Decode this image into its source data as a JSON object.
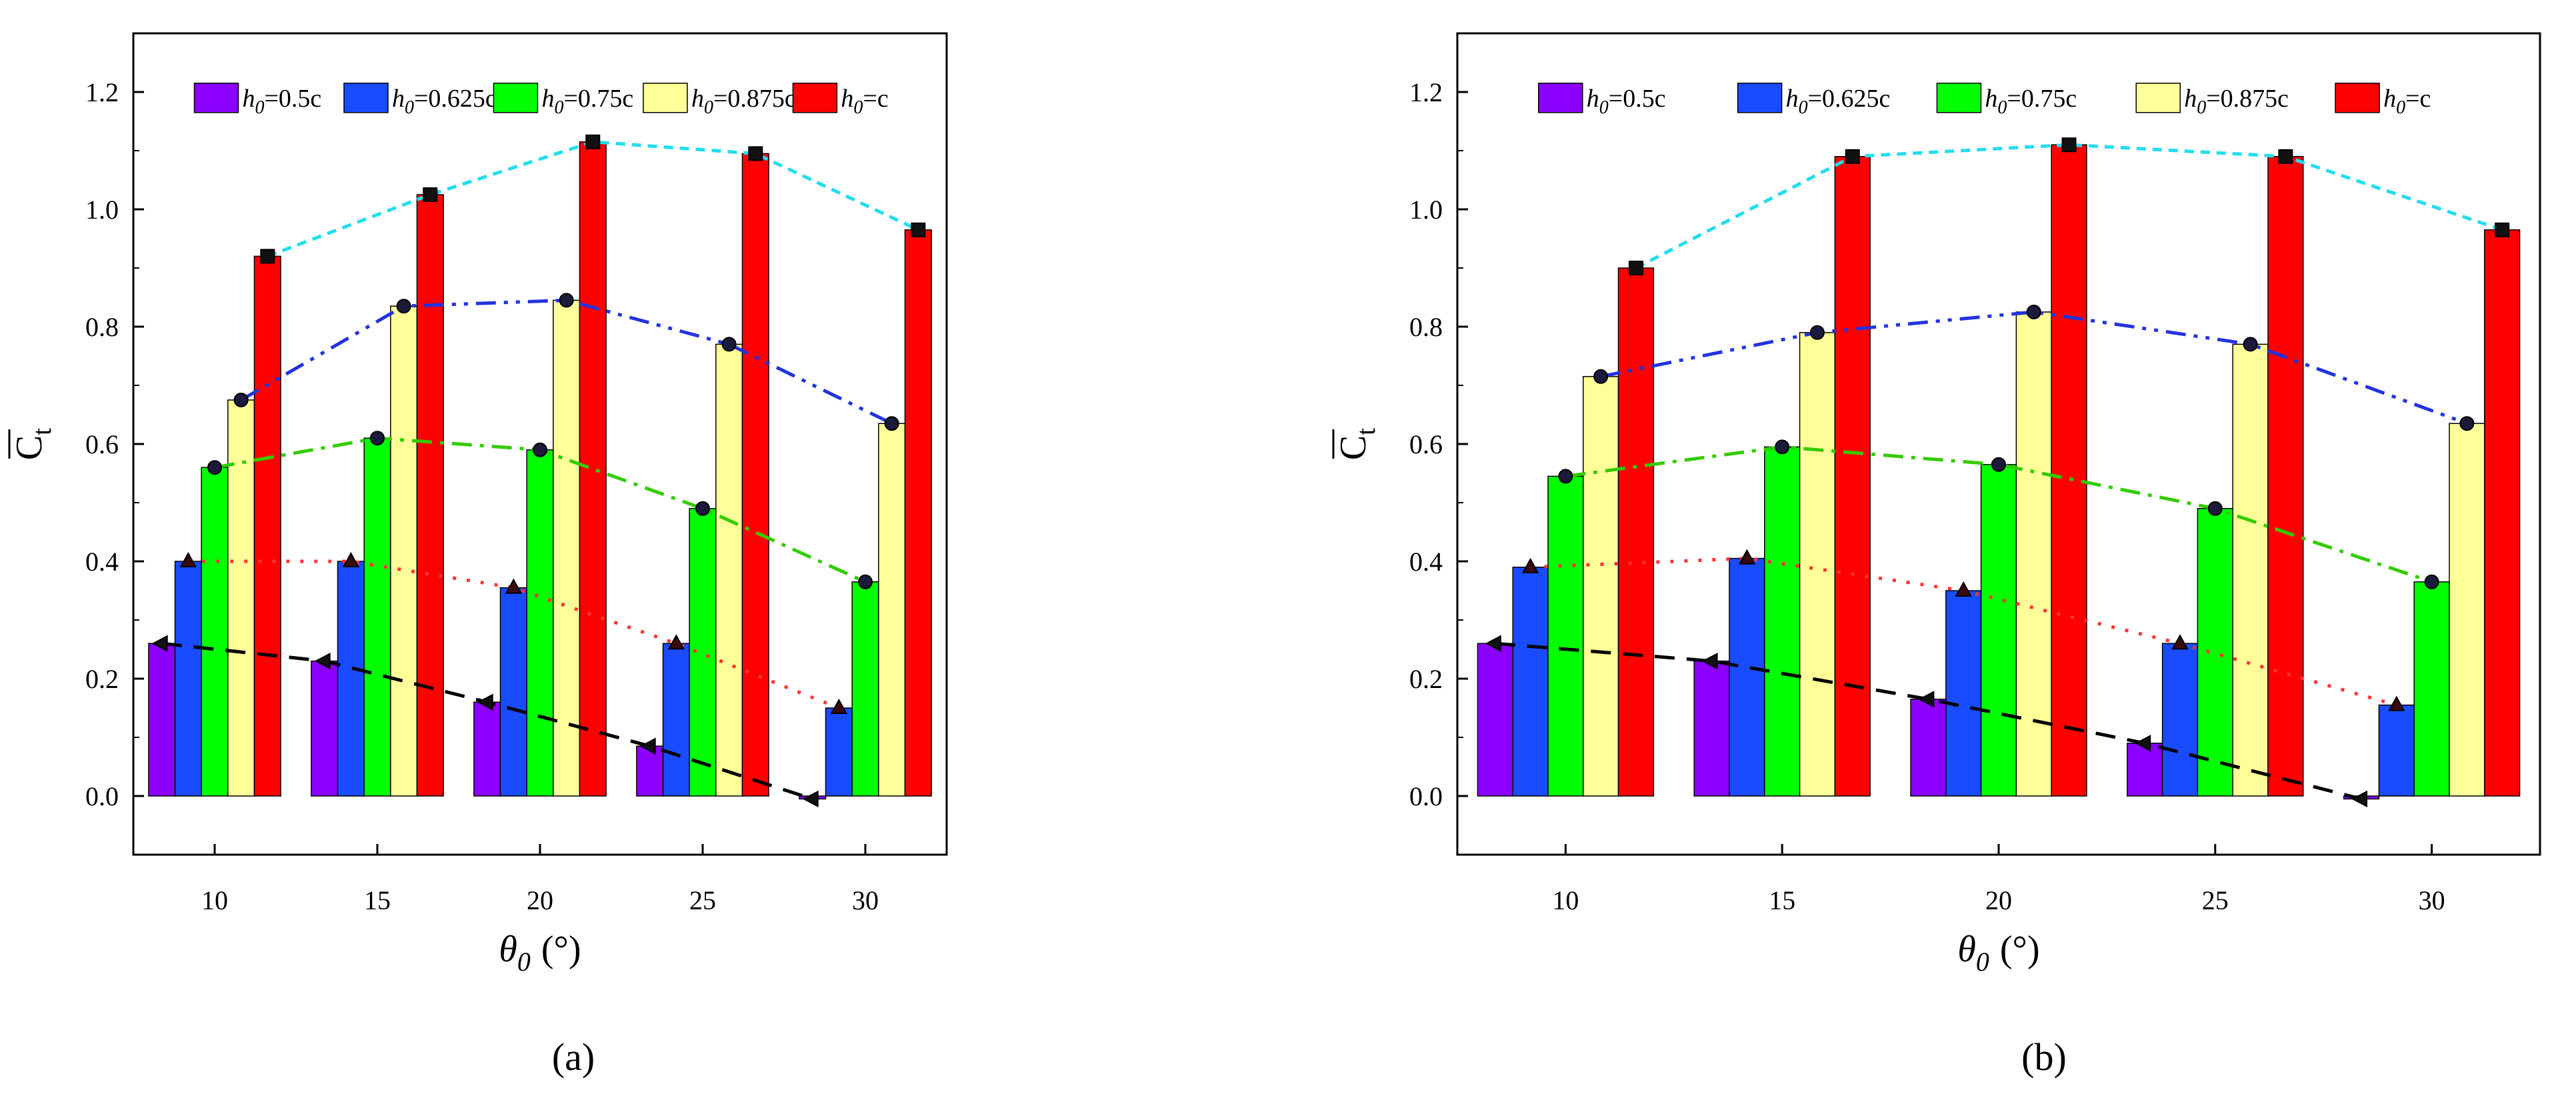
{
  "figure": {
    "panel_labels": [
      "(a)",
      "(b)"
    ]
  },
  "colors": {
    "h0_05c": "#8B00FF",
    "h0_0625c": "#1A4CFF",
    "h0_075c": "#00FF00",
    "h0_0875c": "#FFFF99",
    "h0_c": "#FF0000",
    "line_h0_05c": "#000000",
    "line_h0_0625c": "#FF3333",
    "line_h0_075c": "#33CC00",
    "line_h0_0875c": "#2233DD",
    "line_h0_c": "#22DDEE"
  },
  "chart_data": [
    {
      "type": "bar",
      "panel": "a",
      "label": "(a)",
      "categories": [
        "10",
        "15",
        "20",
        "25",
        "30"
      ],
      "xlabel_main": "θ",
      "xlabel_sub": "0",
      "xlabel_unit": "(°)",
      "ylabel": "C",
      "ylabel_sub": "t",
      "ylim": [
        -0.1,
        1.3
      ],
      "yticks": [
        "0.0",
        "0.2",
        "0.4",
        "0.6",
        "0.8",
        "1.0",
        "1.2"
      ],
      "legend_prefix": "h",
      "legend_sub": "0",
      "series": [
        {
          "name": "h0=0.5c",
          "legend_value": "=0.5c",
          "color_key": "h0_05c",
          "values": [
            0.26,
            0.23,
            0.16,
            0.085,
            -0.005
          ]
        },
        {
          "name": "h0=0.625c",
          "legend_value": "=0.625c",
          "color_key": "h0_0625c",
          "values": [
            0.4,
            0.4,
            0.355,
            0.26,
            0.15
          ]
        },
        {
          "name": "h0=0.75c",
          "legend_value": "=0.75c",
          "color_key": "h0_075c",
          "values": [
            0.56,
            0.61,
            0.59,
            0.49,
            0.365
          ]
        },
        {
          "name": "h0=0.875c",
          "legend_value": "=0.875c",
          "color_key": "h0_0875c",
          "values": [
            0.675,
            0.835,
            0.845,
            0.77,
            0.635
          ]
        },
        {
          "name": "h0=c",
          "legend_value": "=c",
          "color_key": "h0_c",
          "values": [
            0.92,
            1.025,
            1.115,
            1.095,
            0.965
          ]
        }
      ]
    },
    {
      "type": "bar",
      "panel": "b",
      "label": "(b)",
      "categories": [
        "10",
        "15",
        "20",
        "25",
        "30"
      ],
      "xlabel_main": "θ",
      "xlabel_sub": "0",
      "xlabel_unit": "(°)",
      "ylabel": "C",
      "ylabel_sub": "t",
      "ylim": [
        -0.1,
        1.3
      ],
      "yticks": [
        "0.0",
        "0.2",
        "0.4",
        "0.6",
        "0.8",
        "1.0",
        "1.2"
      ],
      "legend_prefix": "h",
      "legend_sub": "0",
      "series": [
        {
          "name": "h0=0.5c",
          "legend_value": "=0.5c",
          "color_key": "h0_05c",
          "values": [
            0.26,
            0.23,
            0.165,
            0.09,
            -0.005
          ]
        },
        {
          "name": "h0=0.625c",
          "legend_value": "=0.625c",
          "color_key": "h0_0625c",
          "values": [
            0.39,
            0.405,
            0.35,
            0.26,
            0.155
          ]
        },
        {
          "name": "h0=0.75c",
          "legend_value": "=0.75c",
          "color_key": "h0_075c",
          "values": [
            0.545,
            0.595,
            0.565,
            0.49,
            0.365
          ]
        },
        {
          "name": "h0=0.875c",
          "legend_value": "=0.875c",
          "color_key": "h0_0875c",
          "values": [
            0.715,
            0.79,
            0.825,
            0.77,
            0.635
          ]
        },
        {
          "name": "h0=c",
          "legend_value": "=c",
          "color_key": "h0_c",
          "values": [
            0.9,
            1.09,
            1.11,
            1.09,
            0.965
          ]
        }
      ]
    }
  ]
}
